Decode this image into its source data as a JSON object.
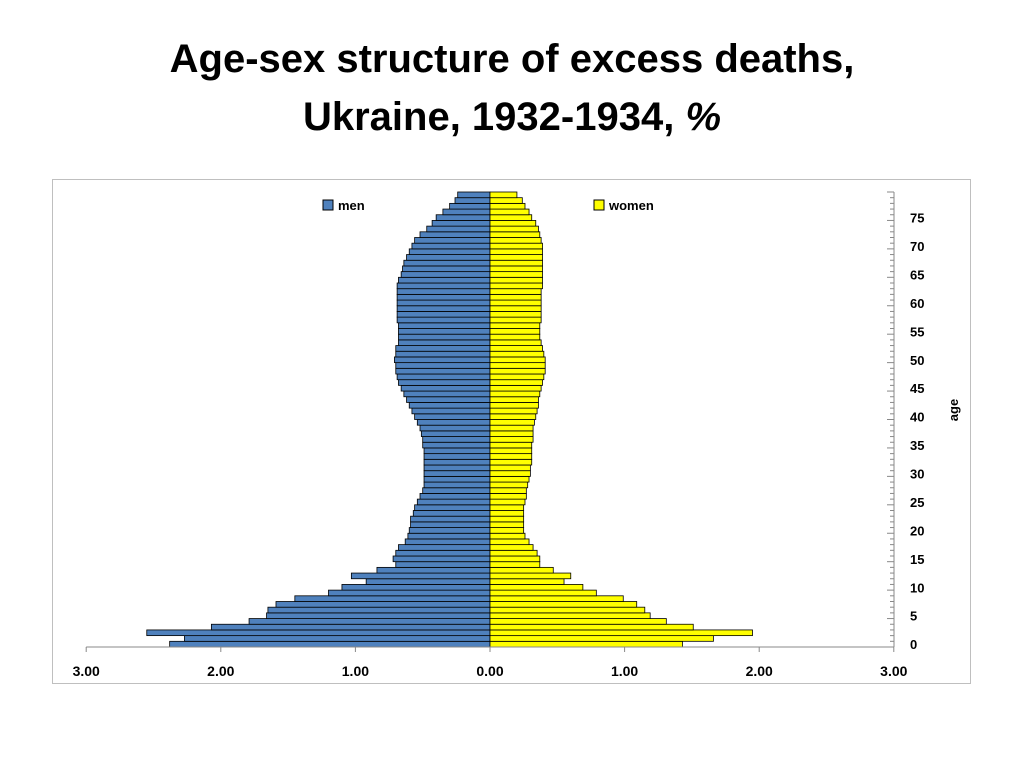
{
  "title": {
    "line1": "Age-sex structure of excess deaths,",
    "line2": "Ukraine, 1932-1934,",
    "unit": "%"
  },
  "colors": {
    "men": "#4f81bd",
    "women": "#ffff00",
    "bar_stroke": "#000000"
  },
  "chart_data": {
    "type": "bar",
    "orientation": "horizontal",
    "subtype": "population-pyramid",
    "xlim": [
      -3,
      3
    ],
    "x_tick_values": [
      -3,
      -2,
      -1,
      0,
      1,
      2,
      3
    ],
    "x_tick_labels": [
      "3.00",
      "2.00",
      "1.00",
      "0.00",
      "1.00",
      "2.00",
      "3.00"
    ],
    "ylabel": "age",
    "y_tick_labels": [
      "0",
      "5",
      "10",
      "15",
      "20",
      "25",
      "30",
      "35",
      "40",
      "45",
      "50",
      "55",
      "60",
      "65",
      "70",
      "75"
    ],
    "legend": [
      "men",
      "women"
    ],
    "legend_position": "top",
    "series": [
      {
        "name": "men",
        "values": [
          2.38,
          2.27,
          2.55,
          2.07,
          1.79,
          1.66,
          1.65,
          1.59,
          1.45,
          1.2,
          1.1,
          0.92,
          1.03,
          0.84,
          0.7,
          0.72,
          0.7,
          0.68,
          0.63,
          0.61,
          0.6,
          0.59,
          0.59,
          0.57,
          0.56,
          0.54,
          0.52,
          0.5,
          0.49,
          0.49,
          0.49,
          0.49,
          0.49,
          0.49,
          0.49,
          0.5,
          0.5,
          0.51,
          0.52,
          0.54,
          0.56,
          0.58,
          0.6,
          0.62,
          0.64,
          0.66,
          0.68,
          0.69,
          0.7,
          0.7,
          0.71,
          0.7,
          0.7,
          0.68,
          0.68,
          0.68,
          0.68,
          0.69,
          0.69,
          0.69,
          0.69,
          0.69,
          0.69,
          0.69,
          0.68,
          0.66,
          0.65,
          0.64,
          0.62,
          0.6,
          0.58,
          0.56,
          0.52,
          0.47,
          0.43,
          0.4,
          0.35,
          0.3,
          0.26,
          0.24
        ]
      },
      {
        "name": "women",
        "values": [
          1.43,
          1.66,
          1.95,
          1.51,
          1.31,
          1.19,
          1.15,
          1.09,
          0.99,
          0.79,
          0.69,
          0.55,
          0.6,
          0.47,
          0.37,
          0.37,
          0.35,
          0.32,
          0.29,
          0.26,
          0.25,
          0.25,
          0.25,
          0.25,
          0.25,
          0.26,
          0.27,
          0.27,
          0.28,
          0.29,
          0.3,
          0.3,
          0.31,
          0.31,
          0.31,
          0.31,
          0.32,
          0.32,
          0.32,
          0.33,
          0.34,
          0.35,
          0.36,
          0.36,
          0.37,
          0.38,
          0.39,
          0.4,
          0.41,
          0.41,
          0.41,
          0.4,
          0.39,
          0.38,
          0.37,
          0.37,
          0.37,
          0.38,
          0.38,
          0.38,
          0.38,
          0.38,
          0.38,
          0.39,
          0.39,
          0.39,
          0.39,
          0.39,
          0.39,
          0.39,
          0.39,
          0.38,
          0.37,
          0.36,
          0.34,
          0.31,
          0.29,
          0.26,
          0.24,
          0.2
        ]
      }
    ]
  }
}
